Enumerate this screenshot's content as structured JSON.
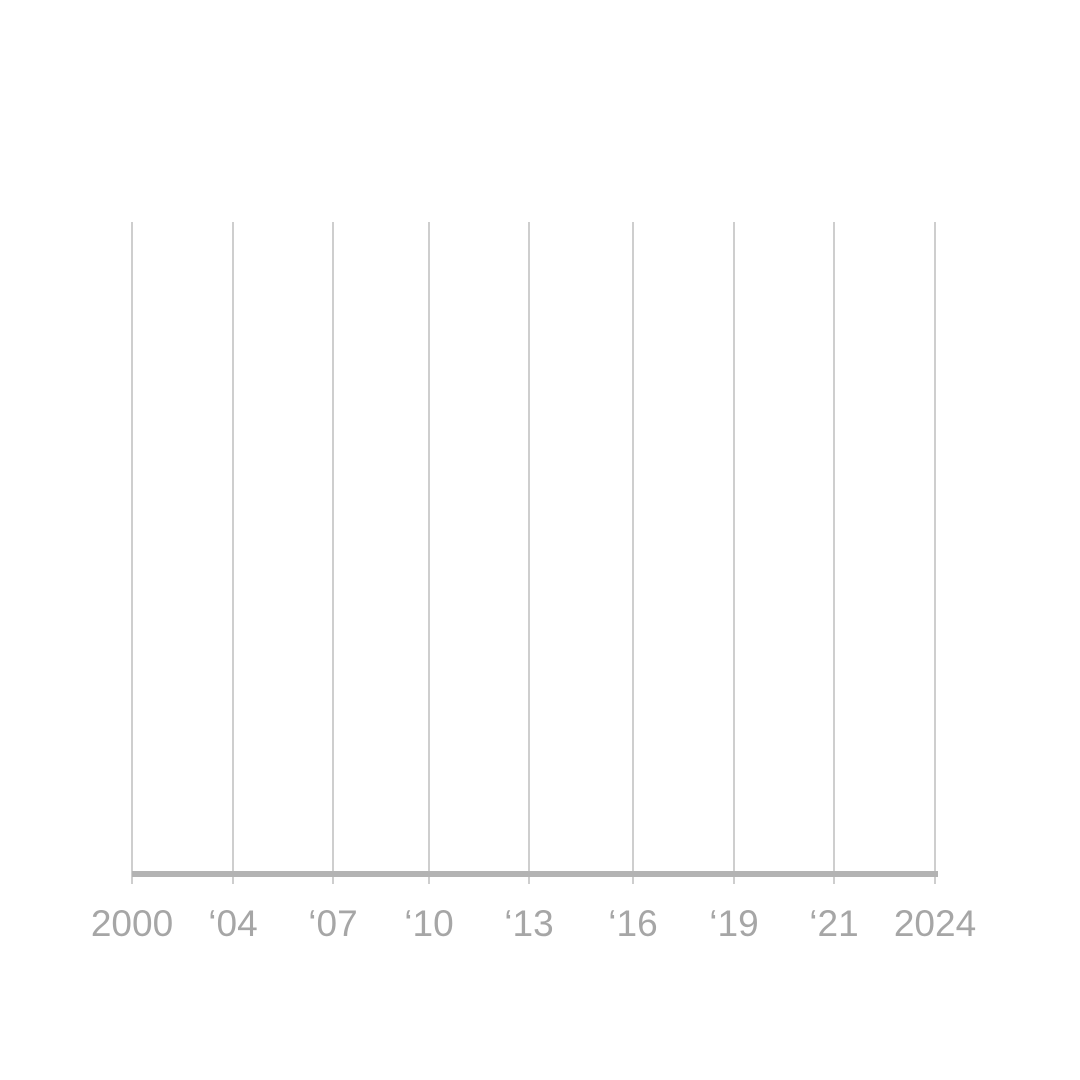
{
  "chart_data": {
    "type": "line",
    "title": "",
    "xlabel": "",
    "ylabel": "",
    "x_ticks": [
      {
        "year": 2000,
        "label": "2000"
      },
      {
        "year": 2004,
        "label": "‘04"
      },
      {
        "year": 2007,
        "label": "‘07"
      },
      {
        "year": 2010,
        "label": "‘10"
      },
      {
        "year": 2013,
        "label": "‘13"
      },
      {
        "year": 2016,
        "label": "‘16"
      },
      {
        "year": 2019,
        "label": "‘19"
      },
      {
        "year": 2021,
        "label": "‘21"
      },
      {
        "year": 2024,
        "label": "2024"
      }
    ],
    "series": [],
    "grid": "vertical",
    "legend": "none",
    "colors": {
      "grid": "#b3b3b3",
      "axis": "#b3b3b3",
      "tick_label": "#a6a6a6"
    }
  }
}
